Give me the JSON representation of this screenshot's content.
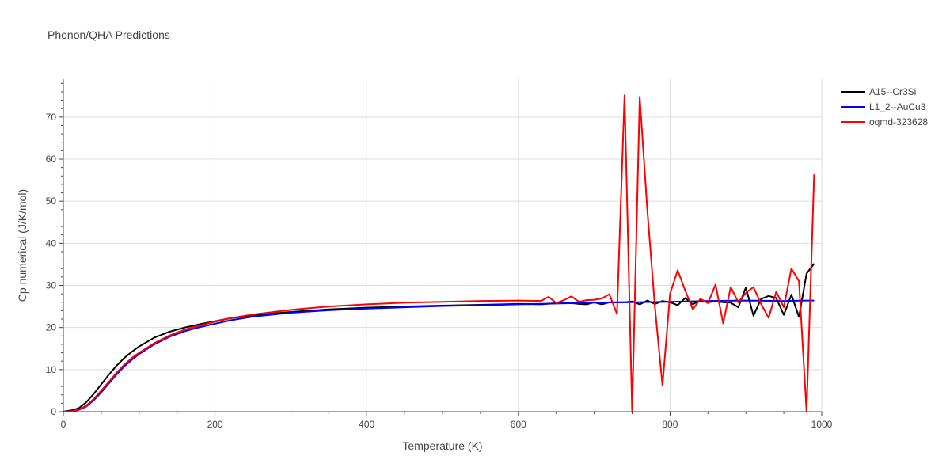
{
  "chart_data": {
    "type": "line",
    "title": "Phonon/QHA Predictions",
    "xlabel": "Temperature (K)",
    "ylabel": "Cp numerical (J/K/mol)",
    "xlim": [
      0,
      1000
    ],
    "ylim": [
      0,
      79
    ],
    "xticks": [
      0,
      200,
      400,
      600,
      800,
      1000
    ],
    "yticks": [
      0,
      10,
      20,
      30,
      40,
      50,
      60,
      70
    ],
    "grid": true,
    "legend_position": "top-right",
    "series": [
      {
        "name": "A15--Cr3Si",
        "color": "#000000",
        "x": [
          0,
          10,
          20,
          30,
          40,
          50,
          60,
          70,
          80,
          90,
          100,
          120,
          140,
          160,
          180,
          200,
          220,
          250,
          300,
          350,
          400,
          450,
          500,
          550,
          600,
          630,
          650,
          670,
          680,
          690,
          700,
          710,
          720,
          740,
          750,
          760,
          770,
          780,
          790,
          800,
          810,
          820,
          830,
          840,
          850,
          860,
          870,
          880,
          890,
          900,
          910,
          920,
          930,
          940,
          950,
          960,
          970,
          980,
          990
        ],
        "y": [
          0,
          0.3,
          0.8,
          2.2,
          4.2,
          6.5,
          8.8,
          10.9,
          12.7,
          14.2,
          15.5,
          17.6,
          19.0,
          20.0,
          20.8,
          21.5,
          22.2,
          22.9,
          23.7,
          24.3,
          24.7,
          25.0,
          25.2,
          25.4,
          25.6,
          25.5,
          25.8,
          25.8,
          25.6,
          25.5,
          26.0,
          25.5,
          26.0,
          26.0,
          26.2,
          25.5,
          26.4,
          25.6,
          26.3,
          26.0,
          25.3,
          27.0,
          25.5,
          26.5,
          26.0,
          26.2,
          26.0,
          25.9,
          24.8,
          29.5,
          22.8,
          26.8,
          27.5,
          27.0,
          23.0,
          27.8,
          22.5,
          32.8,
          35.2
        ]
      },
      {
        "name": "L1_2--AuCu3",
        "color": "#0000ff",
        "x": [
          0,
          10,
          20,
          30,
          40,
          50,
          60,
          70,
          80,
          90,
          100,
          120,
          140,
          160,
          180,
          200,
          220,
          250,
          300,
          350,
          400,
          450,
          500,
          550,
          600,
          650,
          700,
          750,
          800,
          850,
          900,
          950,
          980,
          990
        ],
        "y": [
          0,
          0.1,
          0.4,
          1.2,
          2.7,
          4.6,
          6.7,
          8.8,
          10.7,
          12.3,
          13.7,
          16.0,
          17.8,
          19.1,
          20.1,
          20.9,
          21.7,
          22.6,
          23.5,
          24.1,
          24.5,
          24.8,
          25.1,
          25.3,
          25.5,
          25.7,
          25.9,
          26.0,
          26.1,
          26.3,
          26.4,
          26.3,
          26.4,
          26.4
        ]
      },
      {
        "name": "oqmd-323628",
        "color": "#ff0000",
        "x": [
          0,
          10,
          20,
          30,
          40,
          50,
          60,
          70,
          80,
          90,
          100,
          120,
          140,
          160,
          180,
          200,
          220,
          250,
          300,
          350,
          400,
          450,
          500,
          550,
          600,
          630,
          640,
          650,
          660,
          670,
          680,
          690,
          700,
          710,
          720,
          730,
          740,
          750,
          760,
          770,
          780,
          790,
          800,
          810,
          820,
          830,
          840,
          850,
          860,
          870,
          880,
          890,
          900,
          910,
          920,
          930,
          940,
          950,
          960,
          970,
          980,
          990
        ],
        "y": [
          0,
          0.1,
          0.5,
          1.4,
          3.0,
          5.0,
          7.1,
          9.2,
          11.1,
          12.7,
          14.0,
          16.3,
          18.1,
          19.5,
          20.5,
          21.4,
          22.2,
          23.1,
          24.2,
          25.0,
          25.5,
          25.9,
          26.1,
          26.3,
          26.4,
          26.3,
          27.3,
          25.8,
          26.5,
          27.4,
          26.1,
          26.5,
          26.6,
          26.9,
          27.9,
          23.2,
          75.2,
          0,
          74.8,
          48.0,
          25.0,
          6.2,
          28.0,
          33.6,
          28.8,
          24.3,
          26.8,
          25.8,
          30.2,
          21.0,
          29.6,
          26.0,
          28.2,
          29.6,
          25.6,
          22.3,
          28.5,
          24.8,
          34.0,
          31.0,
          0,
          56.4
        ]
      }
    ]
  }
}
